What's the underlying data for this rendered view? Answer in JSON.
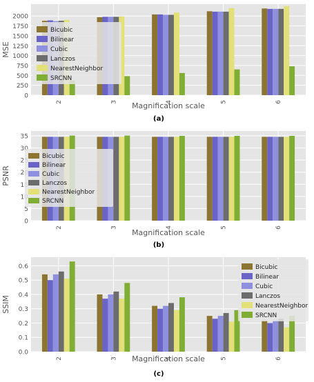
{
  "colors": {
    "Bicubic": "#8b7530",
    "Bilinear": "#6a63c8",
    "Cubic": "#8f8fe0",
    "Lanczos": "#6c6c6c",
    "NearestNeighbor": "#e2e077",
    "SRCNN": "#80ae35",
    "plot_bg": "#e5e5e5",
    "grid": "#ffffff"
  },
  "chart_data": [
    {
      "type": "bar",
      "panel_label": "(a)",
      "xlabel": "Magnification scale",
      "ylabel": "MSE",
      "categories": [
        "2",
        "3",
        "4",
        "5",
        "6"
      ],
      "ylim": [
        0,
        2300
      ],
      "yticks": [
        "0",
        "250",
        "500",
        "750",
        "1000",
        "1250",
        "1500",
        "1750",
        "2000"
      ],
      "ytick_values": [
        0,
        250,
        500,
        750,
        1000,
        1250,
        1500,
        1750,
        2000
      ],
      "legend_position": "upper-left",
      "grid": true,
      "series": [
        {
          "name": "Bicubic",
          "values": [
            1880,
            1970,
            2040,
            2120,
            2190
          ]
        },
        {
          "name": "Bilinear",
          "values": [
            1890,
            1980,
            2040,
            2110,
            2180
          ]
        },
        {
          "name": "Cubic",
          "values": [
            1870,
            1980,
            2030,
            2110,
            2180
          ]
        },
        {
          "name": "Lanczos",
          "values": [
            1880,
            1980,
            2030,
            2110,
            2180
          ]
        },
        {
          "name": "NearestNeighbor",
          "values": [
            1900,
            1990,
            2090,
            2200,
            2250
          ]
        },
        {
          "name": "SRCNN",
          "values": [
            370,
            480,
            560,
            650,
            730
          ]
        }
      ]
    },
    {
      "type": "bar",
      "panel_label": "(b)",
      "xlabel": "Magnification scale",
      "ylabel": "PSNR",
      "categories": [
        "2",
        "3",
        "4",
        "5",
        "6"
      ],
      "ylim": [
        0,
        37
      ],
      "yticks": [
        "0",
        "5",
        "10",
        "15",
        "20",
        "25",
        "30",
        "35"
      ],
      "ytick_values": [
        0,
        5,
        10,
        15,
        20,
        25,
        30,
        35
      ],
      "legend_position": "center-left",
      "grid": true,
      "series": [
        {
          "name": "Bicubic",
          "values": [
            34.6,
            34.6,
            34.6,
            34.6,
            34.6
          ]
        },
        {
          "name": "Bilinear",
          "values": [
            34.6,
            34.6,
            34.6,
            34.6,
            34.6
          ]
        },
        {
          "name": "Cubic",
          "values": [
            34.6,
            34.6,
            34.6,
            34.6,
            34.6
          ]
        },
        {
          "name": "Lanczos",
          "values": [
            34.6,
            34.6,
            34.6,
            34.6,
            34.6
          ]
        },
        {
          "name": "NearestNeighbor",
          "values": [
            34.6,
            34.6,
            34.6,
            34.6,
            34.6
          ]
        },
        {
          "name": "SRCNN",
          "values": [
            35.1,
            35.1,
            35.0,
            35.0,
            35.0
          ]
        }
      ]
    },
    {
      "type": "bar",
      "panel_label": "(c)",
      "xlabel": "Magnification scale",
      "ylabel": "SSIM",
      "categories": [
        "2",
        "3",
        "4",
        "5",
        "6"
      ],
      "ylim": [
        0,
        0.66
      ],
      "yticks": [
        "0.0",
        "0.1",
        "0.2",
        "0.3",
        "0.4",
        "0.5",
        "0.6"
      ],
      "ytick_values": [
        0,
        0.1,
        0.2,
        0.3,
        0.4,
        0.5,
        0.6
      ],
      "legend_position": "upper-right",
      "grid": true,
      "series": [
        {
          "name": "Bicubic",
          "values": [
            0.54,
            0.4,
            0.32,
            0.25,
            0.22
          ]
        },
        {
          "name": "Bilinear",
          "values": [
            0.5,
            0.37,
            0.3,
            0.23,
            0.2
          ]
        },
        {
          "name": "Cubic",
          "values": [
            0.54,
            0.4,
            0.32,
            0.25,
            0.22
          ]
        },
        {
          "name": "Lanczos",
          "values": [
            0.56,
            0.42,
            0.34,
            0.27,
            0.23
          ]
        },
        {
          "name": "NearestNeighbor",
          "values": [
            0.51,
            0.37,
            0.29,
            0.21,
            0.17
          ]
        },
        {
          "name": "SRCNN",
          "values": [
            0.63,
            0.48,
            0.38,
            0.29,
            0.25
          ]
        }
      ]
    }
  ]
}
